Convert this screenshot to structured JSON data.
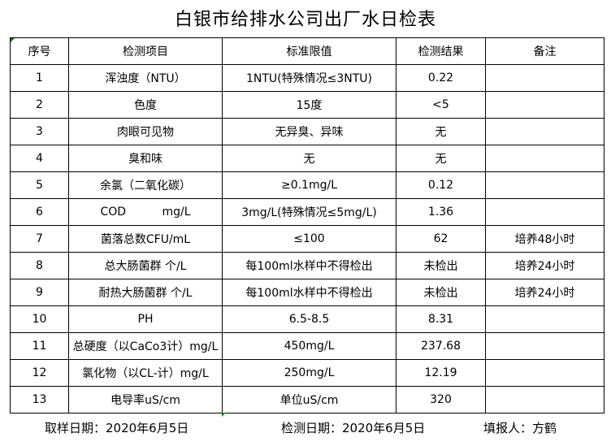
{
  "title": "白银市给排水公司出厂水日检表",
  "headers": [
    "序号",
    "检测项目",
    "标准限值",
    "检测结果",
    "备注"
  ],
  "rows": [
    [
      "1",
      "浑浊度（NTU）",
      "1NTU(特殊情况≤3NTU)",
      "0.22",
      ""
    ],
    [
      "2",
      "色度",
      "15度",
      "<5",
      ""
    ],
    [
      "3",
      "肉眼可见物",
      "无异臭、异味",
      "无",
      ""
    ],
    [
      "4",
      "臭和味",
      "无",
      "无",
      ""
    ],
    [
      "5",
      "余氯（二氧化碳）",
      "≥0.1mg/L",
      "0.12",
      ""
    ],
    [
      "6",
      "COD          mg/L",
      "3mg/L(特殊情况≤5mg/L)",
      "1.36",
      ""
    ],
    [
      "7",
      "菌落总数CFU/mL",
      "≤100",
      "62",
      "培养48小时"
    ],
    [
      "8",
      "总大肠菌群 个/L",
      "每100ml水样中不得检出",
      "未检出",
      "培养24小时"
    ],
    [
      "9",
      "耐热大肠菌群 个/L",
      "每100ml水样中不得检出",
      "未检出",
      "培养24小时"
    ],
    [
      "10",
      "PH",
      "6.5-8.5",
      "8.31",
      ""
    ],
    [
      "11",
      "总硬度（以CaCo3计）mg/L",
      "450mg/L",
      "237.68",
      ""
    ],
    [
      "12",
      "氯化物（以CL-计）mg/L",
      "250mg/L",
      "12.19",
      ""
    ],
    [
      "13",
      "电导率uS/cm",
      "单位uS/cm",
      "320",
      ""
    ]
  ],
  "footer": {
    "sample_date": "取样日期：2020年6月5日",
    "test_date": "检测日期：2020年6月5日",
    "reporter": "填报人：方鹤"
  }
}
